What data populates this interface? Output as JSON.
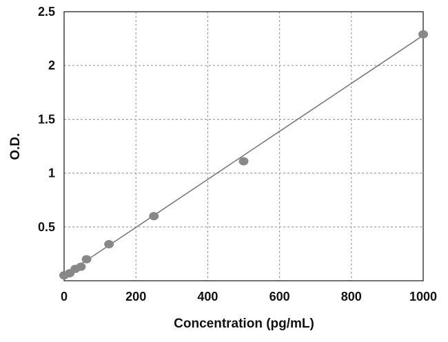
{
  "chart_data": {
    "type": "scatter",
    "title": "",
    "xlabel": "Concentration (pg/mL)",
    "ylabel": "O.D.",
    "xlim": [
      0,
      1000
    ],
    "ylim": [
      0,
      2.5
    ],
    "x_ticks": [
      "0",
      "200",
      "400",
      "600",
      "800",
      "1000"
    ],
    "y_ticks": [
      "0.5",
      "1",
      "1.5",
      "2",
      "2.5"
    ],
    "grid": true,
    "grid_style": "dashed",
    "legend": "none",
    "series": [
      {
        "points": [
          {
            "x": 0,
            "y": 0.05
          },
          {
            "x": 15.6,
            "y": 0.07
          },
          {
            "x": 31.2,
            "y": 0.11
          },
          {
            "x": 46.8,
            "y": 0.13
          },
          {
            "x": 62.5,
            "y": 0.2
          },
          {
            "x": 125,
            "y": 0.34
          },
          {
            "x": 250,
            "y": 0.6
          },
          {
            "x": 500,
            "y": 1.11
          },
          {
            "x": 1000,
            "y": 2.29
          }
        ],
        "fit_line": {
          "x": [
            0,
            1000
          ],
          "y": [
            0.05,
            2.28
          ]
        }
      }
    ],
    "colors": {
      "marker": "#888888",
      "line": "#7a7a7a",
      "grid": "#9a9a9a",
      "axis": "#222222"
    }
  }
}
